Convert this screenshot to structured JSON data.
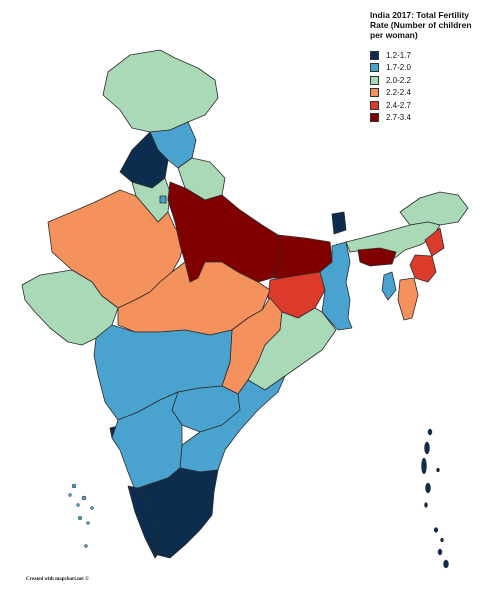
{
  "legend": {
    "title": "India 2017: Total Fertility Rate (Number of children per woman)",
    "items": [
      {
        "label": "1.2-1.7",
        "color": "#0d2d4f"
      },
      {
        "label": "1.7-2.0",
        "color": "#4aa3cf"
      },
      {
        "label": "2.0-2.2",
        "color": "#a9d9b6"
      },
      {
        "label": "2.2-2.4",
        "color": "#f4915c"
      },
      {
        "label": "2.4-2.7",
        "color": "#dc3a2a"
      },
      {
        "label": "2.7-3.4",
        "color": "#800000"
      }
    ]
  },
  "credit": "Created with mapchart.net ©"
}
